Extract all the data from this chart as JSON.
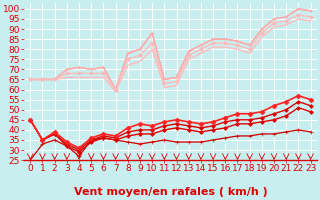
{
  "title": "",
  "xlabel": "Vent moyen/en rafales ( km/h )",
  "bg_color": "#c8eef0",
  "grid_color": "#ffffff",
  "x": [
    0,
    1,
    2,
    3,
    4,
    5,
    6,
    7,
    8,
    9,
    10,
    11,
    12,
    13,
    14,
    15,
    16,
    17,
    18,
    19,
    20,
    21,
    22,
    23
  ],
  "lines": [
    {
      "y": [
        25,
        33,
        35,
        32,
        27,
        35,
        36,
        35,
        34,
        33,
        34,
        35,
        34,
        34,
        34,
        35,
        36,
        37,
        37,
        38,
        38,
        39,
        40,
        39
      ],
      "color": "#cc0000",
      "lw": 0.9,
      "marker": "+",
      "ms": 3.0
    },
    {
      "y": [
        45,
        35,
        38,
        32,
        29,
        34,
        36,
        35,
        37,
        38,
        38,
        40,
        41,
        40,
        39,
        40,
        41,
        43,
        43,
        44,
        45,
        47,
        51,
        49
      ],
      "color": "#dd0000",
      "lw": 1.0,
      "marker": "D",
      "ms": 2.0
    },
    {
      "y": [
        45,
        35,
        38,
        33,
        30,
        35,
        37,
        36,
        39,
        40,
        40,
        42,
        43,
        42,
        41,
        42,
        44,
        45,
        45,
        46,
        48,
        50,
        54,
        52
      ],
      "color": "#dd0000",
      "lw": 1.0,
      "marker": "D",
      "ms": 2.0
    },
    {
      "y": [
        45,
        35,
        39,
        34,
        31,
        36,
        38,
        37,
        41,
        43,
        42,
        44,
        45,
        44,
        43,
        44,
        46,
        48,
        48,
        49,
        52,
        54,
        57,
        55
      ],
      "color": "#ff2222",
      "lw": 1.2,
      "marker": "D",
      "ms": 2.5
    },
    {
      "y": [
        65,
        65,
        65,
        70,
        71,
        70,
        71,
        60,
        78,
        80,
        88,
        65,
        66,
        79,
        82,
        85,
        85,
        84,
        82,
        90,
        95,
        96,
        100,
        99
      ],
      "color": "#ffaaaa",
      "lw": 1.0,
      "marker": "+",
      "ms": 3.0
    },
    {
      "y": [
        65,
        65,
        65,
        70,
        71,
        70,
        71,
        60,
        78,
        80,
        88,
        65,
        66,
        79,
        82,
        85,
        85,
        84,
        82,
        90,
        95,
        96,
        100,
        99
      ],
      "color": "#ffaaaa",
      "lw": 1.0,
      "marker": null,
      "ms": 0
    },
    {
      "y": [
        65,
        65,
        65,
        68,
        68,
        68,
        68,
        60,
        75,
        77,
        83,
        63,
        64,
        77,
        80,
        83,
        83,
        82,
        80,
        88,
        93,
        94,
        97,
        96
      ],
      "color": "#ffbbbb",
      "lw": 1.0,
      "marker": "D",
      "ms": 2.0
    },
    {
      "y": [
        65,
        65,
        65,
        66,
        66,
        66,
        66,
        59,
        72,
        74,
        80,
        61,
        62,
        75,
        78,
        81,
        81,
        80,
        78,
        86,
        91,
        92,
        95,
        94
      ],
      "color": "#ffbbbb",
      "lw": 1.0,
      "marker": null,
      "ms": 0
    }
  ],
  "ylim": [
    25,
    103
  ],
  "yticks": [
    25,
    30,
    35,
    40,
    45,
    50,
    55,
    60,
    65,
    70,
    75,
    80,
    85,
    90,
    95,
    100
  ],
  "xlim": [
    -0.5,
    23.5
  ],
  "xlabel_color": "#dd0000",
  "tick_color": "#dd0000",
  "xlabel_fontsize": 8,
  "tick_fontsize": 6.5
}
